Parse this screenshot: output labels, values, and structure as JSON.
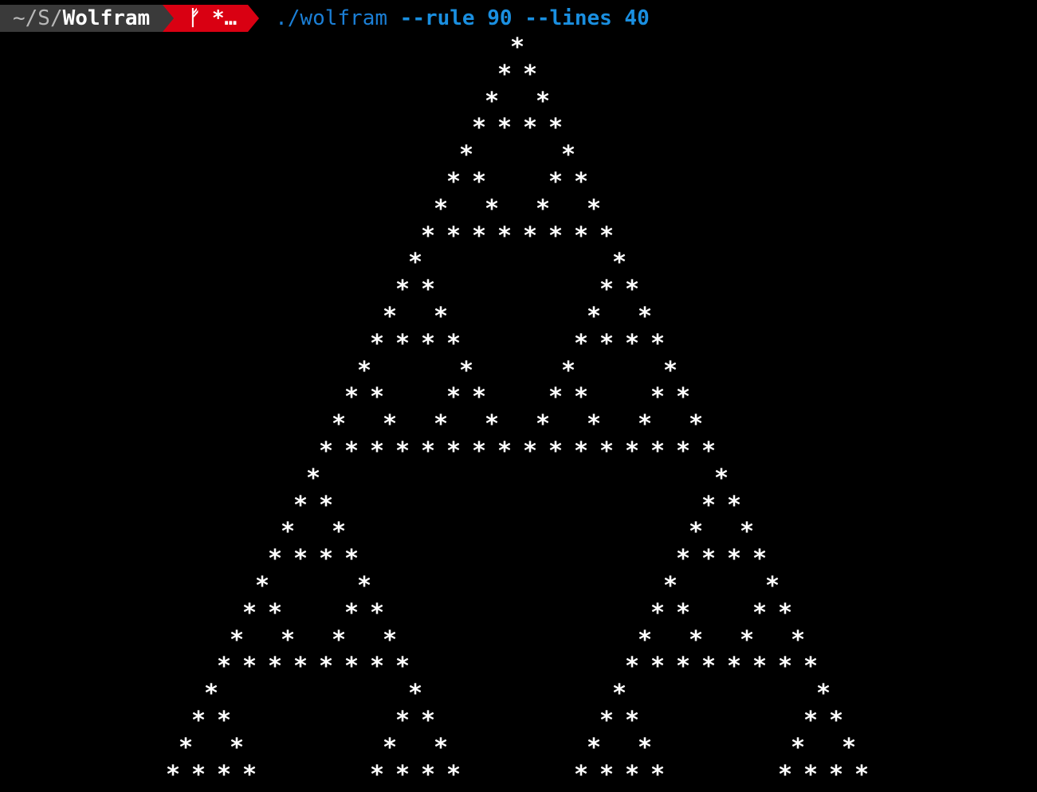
{
  "prompt": {
    "path_prefix": "~/S/",
    "path_current": "Wolfram",
    "git_branch_icon": "git-branch-icon",
    "git_status": "*…",
    "command_exe": "./wolfram",
    "command_args": " --rule 90 --lines 40"
  },
  "output": {
    "cell_char": "*",
    "rule": 90,
    "visible_lines": 28
  },
  "colors": {
    "background": "#000000",
    "text": "#ffffff",
    "path_segment": "#3a3a3a",
    "git_segment": "#d90012",
    "command": "#1a8fe0"
  }
}
